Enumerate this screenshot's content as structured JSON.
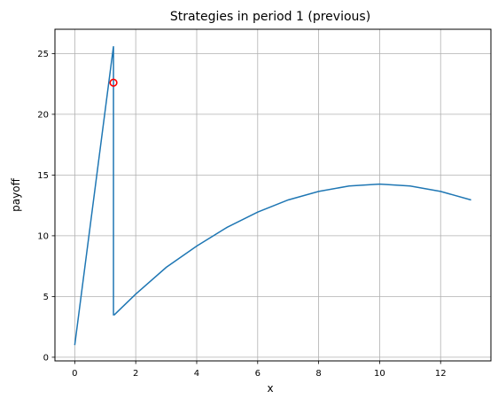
{
  "chart_data": {
    "type": "line",
    "title": "Strategies in period 1 (previous)",
    "xlabel": "x",
    "ylabel": "payoff",
    "xlim": [
      -0.65,
      13.65
    ],
    "ylim": [
      -0.3,
      27
    ],
    "xticks": [
      0,
      2,
      4,
      6,
      8,
      10,
      12
    ],
    "yticks": [
      0,
      5,
      10,
      15,
      20,
      25
    ],
    "xtick_labels": [
      "0",
      "2",
      "4",
      "6",
      "8",
      "10",
      "12"
    ],
    "ytick_labels": [
      "0",
      "5",
      "10",
      "15",
      "20",
      "25"
    ],
    "grid": true,
    "series": [
      {
        "color": "#1f77b4",
        "x": [
          0,
          1.27,
          1.27,
          1.3,
          2,
          3,
          4,
          5,
          6,
          7,
          8,
          9,
          10,
          11,
          12,
          13
        ],
        "y": [
          1.0,
          25.6,
          3.5,
          3.5,
          5.2,
          7.4,
          9.15,
          10.7,
          11.95,
          12.95,
          13.65,
          14.1,
          14.25,
          14.1,
          13.65,
          12.95
        ]
      }
    ],
    "markers": [
      {
        "x": 1.27,
        "y": 22.6,
        "edge_color": "#ff0000",
        "style": "open-circle"
      }
    ]
  }
}
